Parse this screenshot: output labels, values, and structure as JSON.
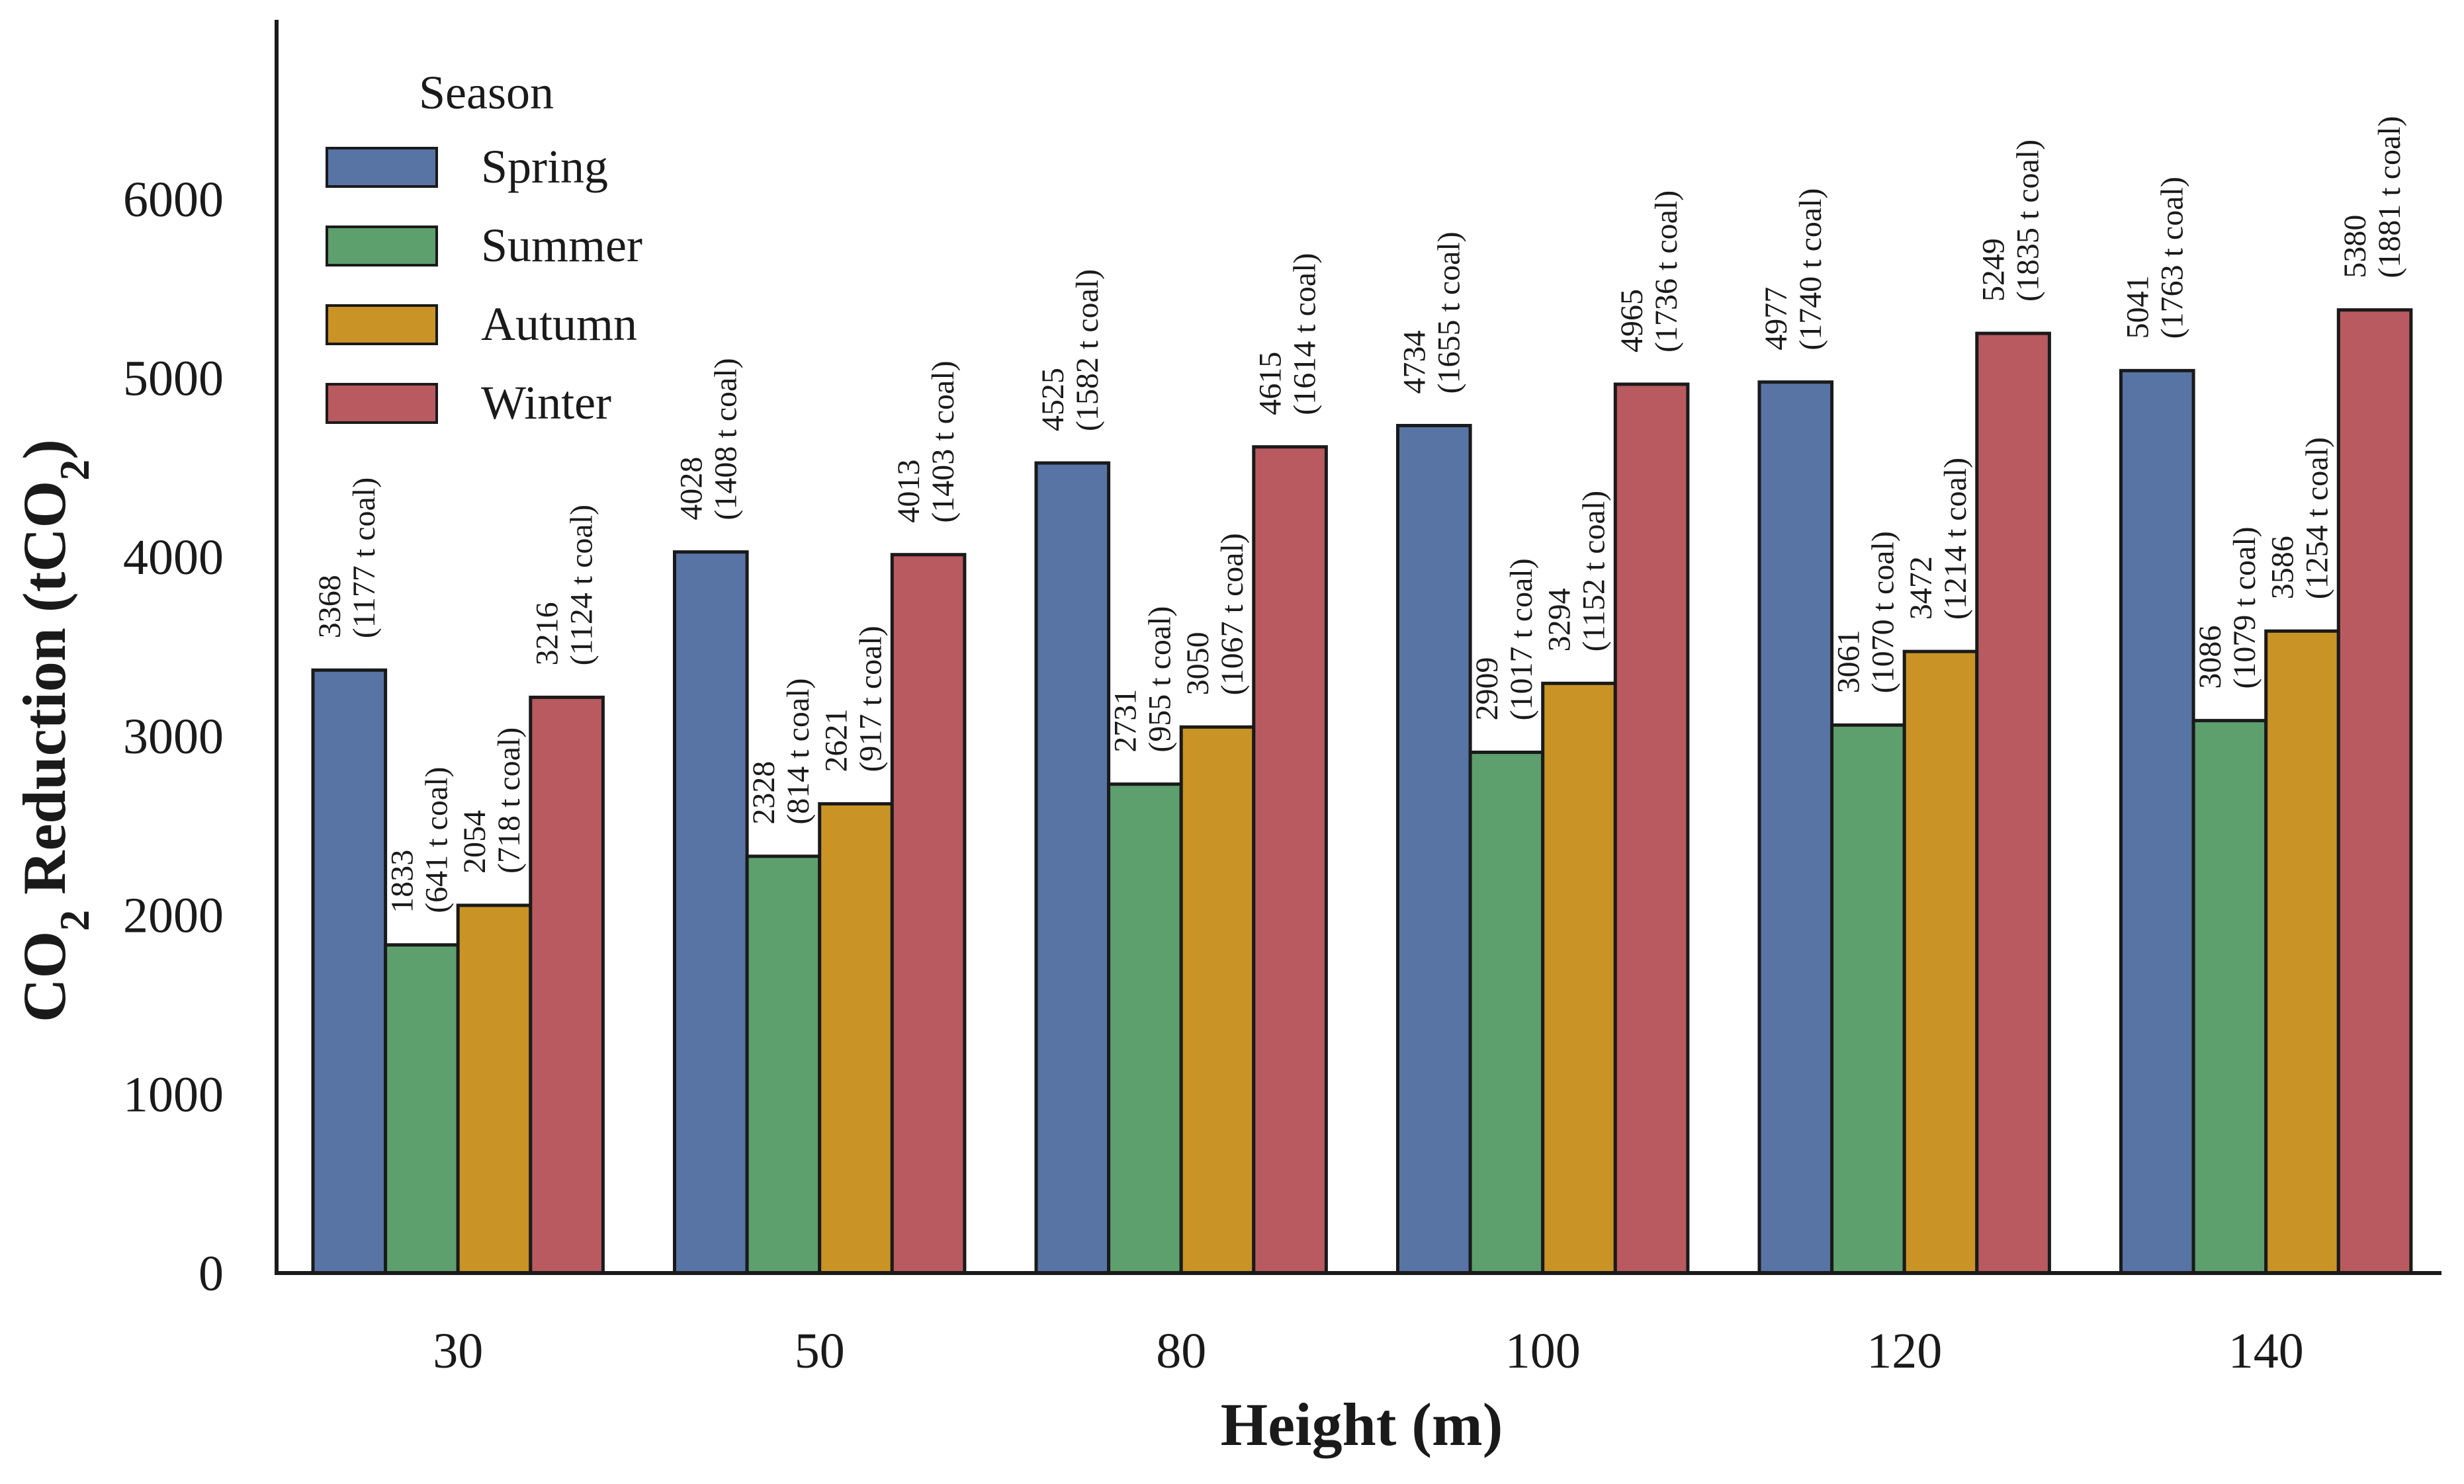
{
  "chart_data": {
    "type": "bar",
    "title": "",
    "xlabel": "Height (m)",
    "ylabel": {
      "prefix": "CO",
      "sub": "2",
      "mid": " Reduction (tCO",
      "sub2": "2",
      "suffix": ")"
    },
    "categories": [
      "30",
      "50",
      "80",
      "100",
      "120",
      "140"
    ],
    "ylim": [
      0,
      7000
    ],
    "yticks": [
      0,
      1000,
      2000,
      3000,
      4000,
      5000,
      6000
    ],
    "legend": {
      "title": "Season",
      "placement": "top-left"
    },
    "series": [
      {
        "name": "Spring",
        "color": "#5874a5",
        "values": [
          3368,
          4028,
          4525,
          4734,
          4977,
          5041
        ],
        "coal": [
          "(1177 t coal)",
          "(1408 t coal)",
          "(1582 t coal)",
          "(1655 t coal)",
          "(1740 t coal)",
          "(1763 t coal)"
        ]
      },
      {
        "name": "Summer",
        "color": "#5e9f6e",
        "values": [
          1833,
          2328,
          2731,
          2909,
          3061,
          3086
        ],
        "coal": [
          "(641 t coal)",
          "(814 t coal)",
          "(955 t coal)",
          "(1017 t coal)",
          "(1070 t coal)",
          "(1079 t coal)"
        ]
      },
      {
        "name": "Autumn",
        "color": "#c99425",
        "values": [
          2054,
          2621,
          3050,
          3294,
          3472,
          3586
        ],
        "coal": [
          "(718 t coal)",
          "(917 t coal)",
          "(1067 t coal)",
          "(1152 t coal)",
          "(1214 t coal)",
          "(1254 t coal)"
        ]
      },
      {
        "name": "Winter",
        "color": "#b85a5f",
        "values": [
          3216,
          4013,
          4615,
          4965,
          5249,
          5380
        ],
        "coal": [
          "(1124 t coal)",
          "(1403 t coal)",
          "(1614 t coal)",
          "(1736 t coal)",
          "(1835 t coal)",
          "(1881 t coal)"
        ]
      }
    ]
  }
}
